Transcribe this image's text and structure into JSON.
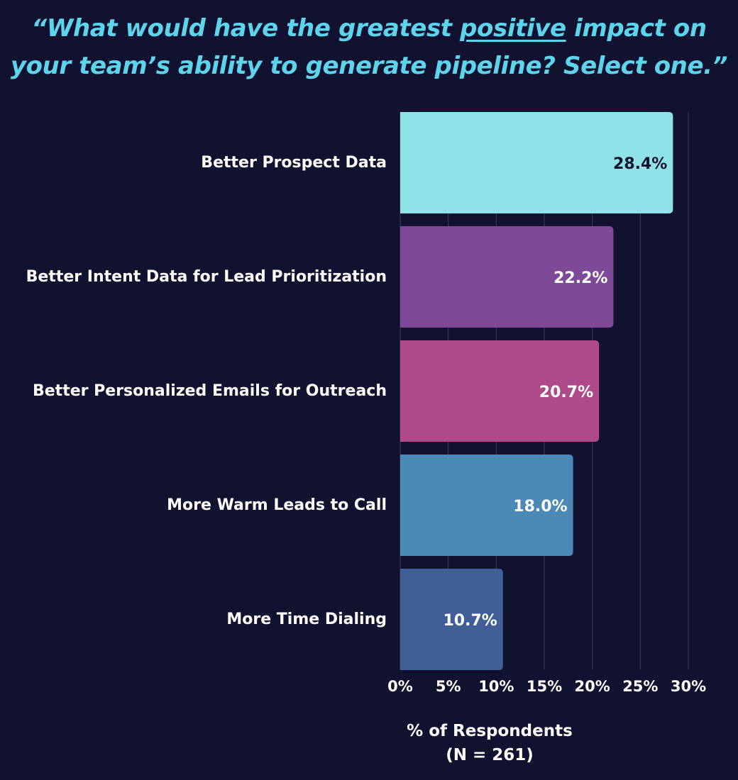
{
  "title": {
    "line1_before": "“What would have the greatest ",
    "line1_emphasis": "positive",
    "line1_after": " impact on",
    "line2": "your team’s ability to generate pipeline? Select one.”"
  },
  "chart_data": {
    "type": "bar",
    "orientation": "horizontal",
    "categories": [
      "Better Prospect Data",
      "Better Intent Data for Lead Prioritization",
      "Better Personalized Emails for Outreach",
      "More Warm Leads to Call",
      "More Time Dialing"
    ],
    "values": [
      28.4,
      22.2,
      20.7,
      18.0,
      10.7
    ],
    "value_labels": [
      "28.4%",
      "22.2%",
      "20.7%",
      "18.0%",
      "10.7%"
    ],
    "bar_colors": [
      "#8ee2e8",
      "#7e4a97",
      "#ae4a88",
      "#4b89b6",
      "#3f5f96"
    ],
    "value_label_colors": [
      "#111230",
      "#ffffff",
      "#ffffff",
      "#ffffff",
      "#ffffff"
    ],
    "xlim": [
      0,
      30
    ],
    "xticks": [
      0,
      5,
      10,
      15,
      20,
      25,
      30
    ],
    "xtick_labels": [
      "0%",
      "5%",
      "10%",
      "15%",
      "20%",
      "25%",
      "30%"
    ],
    "xlabel": "% of Respondents",
    "xlabel_note": "(N = 261)",
    "grid": true
  },
  "colors": {
    "background": "#111230",
    "title": "#5dd3ec",
    "gridline": "#3a3c5c",
    "text": "#ffffff"
  }
}
